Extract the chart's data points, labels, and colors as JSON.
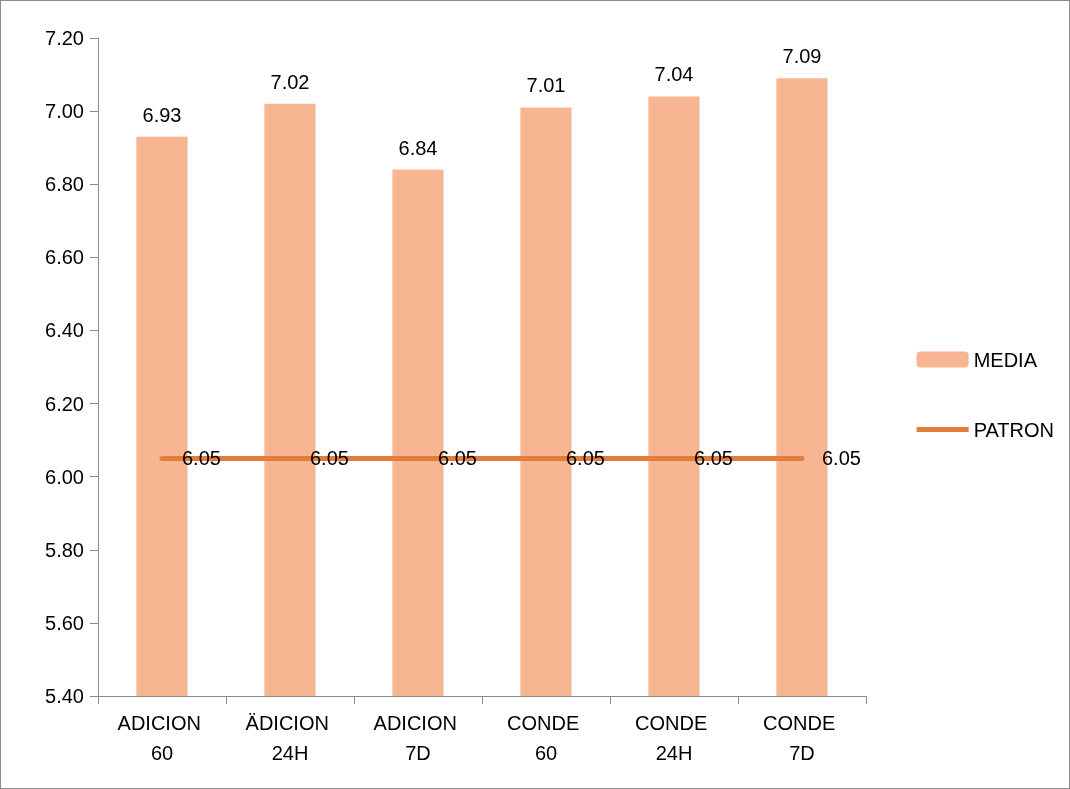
{
  "chart_data": {
    "type": "bar",
    "categories": [
      "ADICION 60",
      "ÄDICION 24H",
      "ADICION 7D",
      "CONDE 60",
      "CONDE 24H",
      "CONDE 7D"
    ],
    "series": [
      {
        "name": "MEDIA",
        "color": "#f8b592",
        "values": [
          6.93,
          7.02,
          6.84,
          7.01,
          7.04,
          7.09
        ]
      },
      {
        "name": "PATRON",
        "type": "line",
        "color": "#e07f3a",
        "values": [
          6.05,
          6.05,
          6.05,
          6.05,
          6.05,
          6.05
        ]
      }
    ],
    "ylim": [
      5.4,
      7.2
    ],
    "yticks": [
      {
        "value": 5.4,
        "label": "5.40"
      },
      {
        "value": 5.6,
        "label": "5.60"
      },
      {
        "value": 5.8,
        "label": "5.80"
      },
      {
        "value": 6.0,
        "label": "6.00"
      },
      {
        "value": 6.2,
        "label": "6.20"
      },
      {
        "value": 6.4,
        "label": "6.40"
      },
      {
        "value": 6.6,
        "label": "6.60"
      },
      {
        "value": 6.8,
        "label": "6.80"
      },
      {
        "value": 7.0,
        "label": "7.00"
      },
      {
        "value": 7.2,
        "label": "7.20"
      }
    ],
    "grid": false,
    "legend": "right",
    "marker": "none",
    "line_style": "solid",
    "data_labels": true
  }
}
